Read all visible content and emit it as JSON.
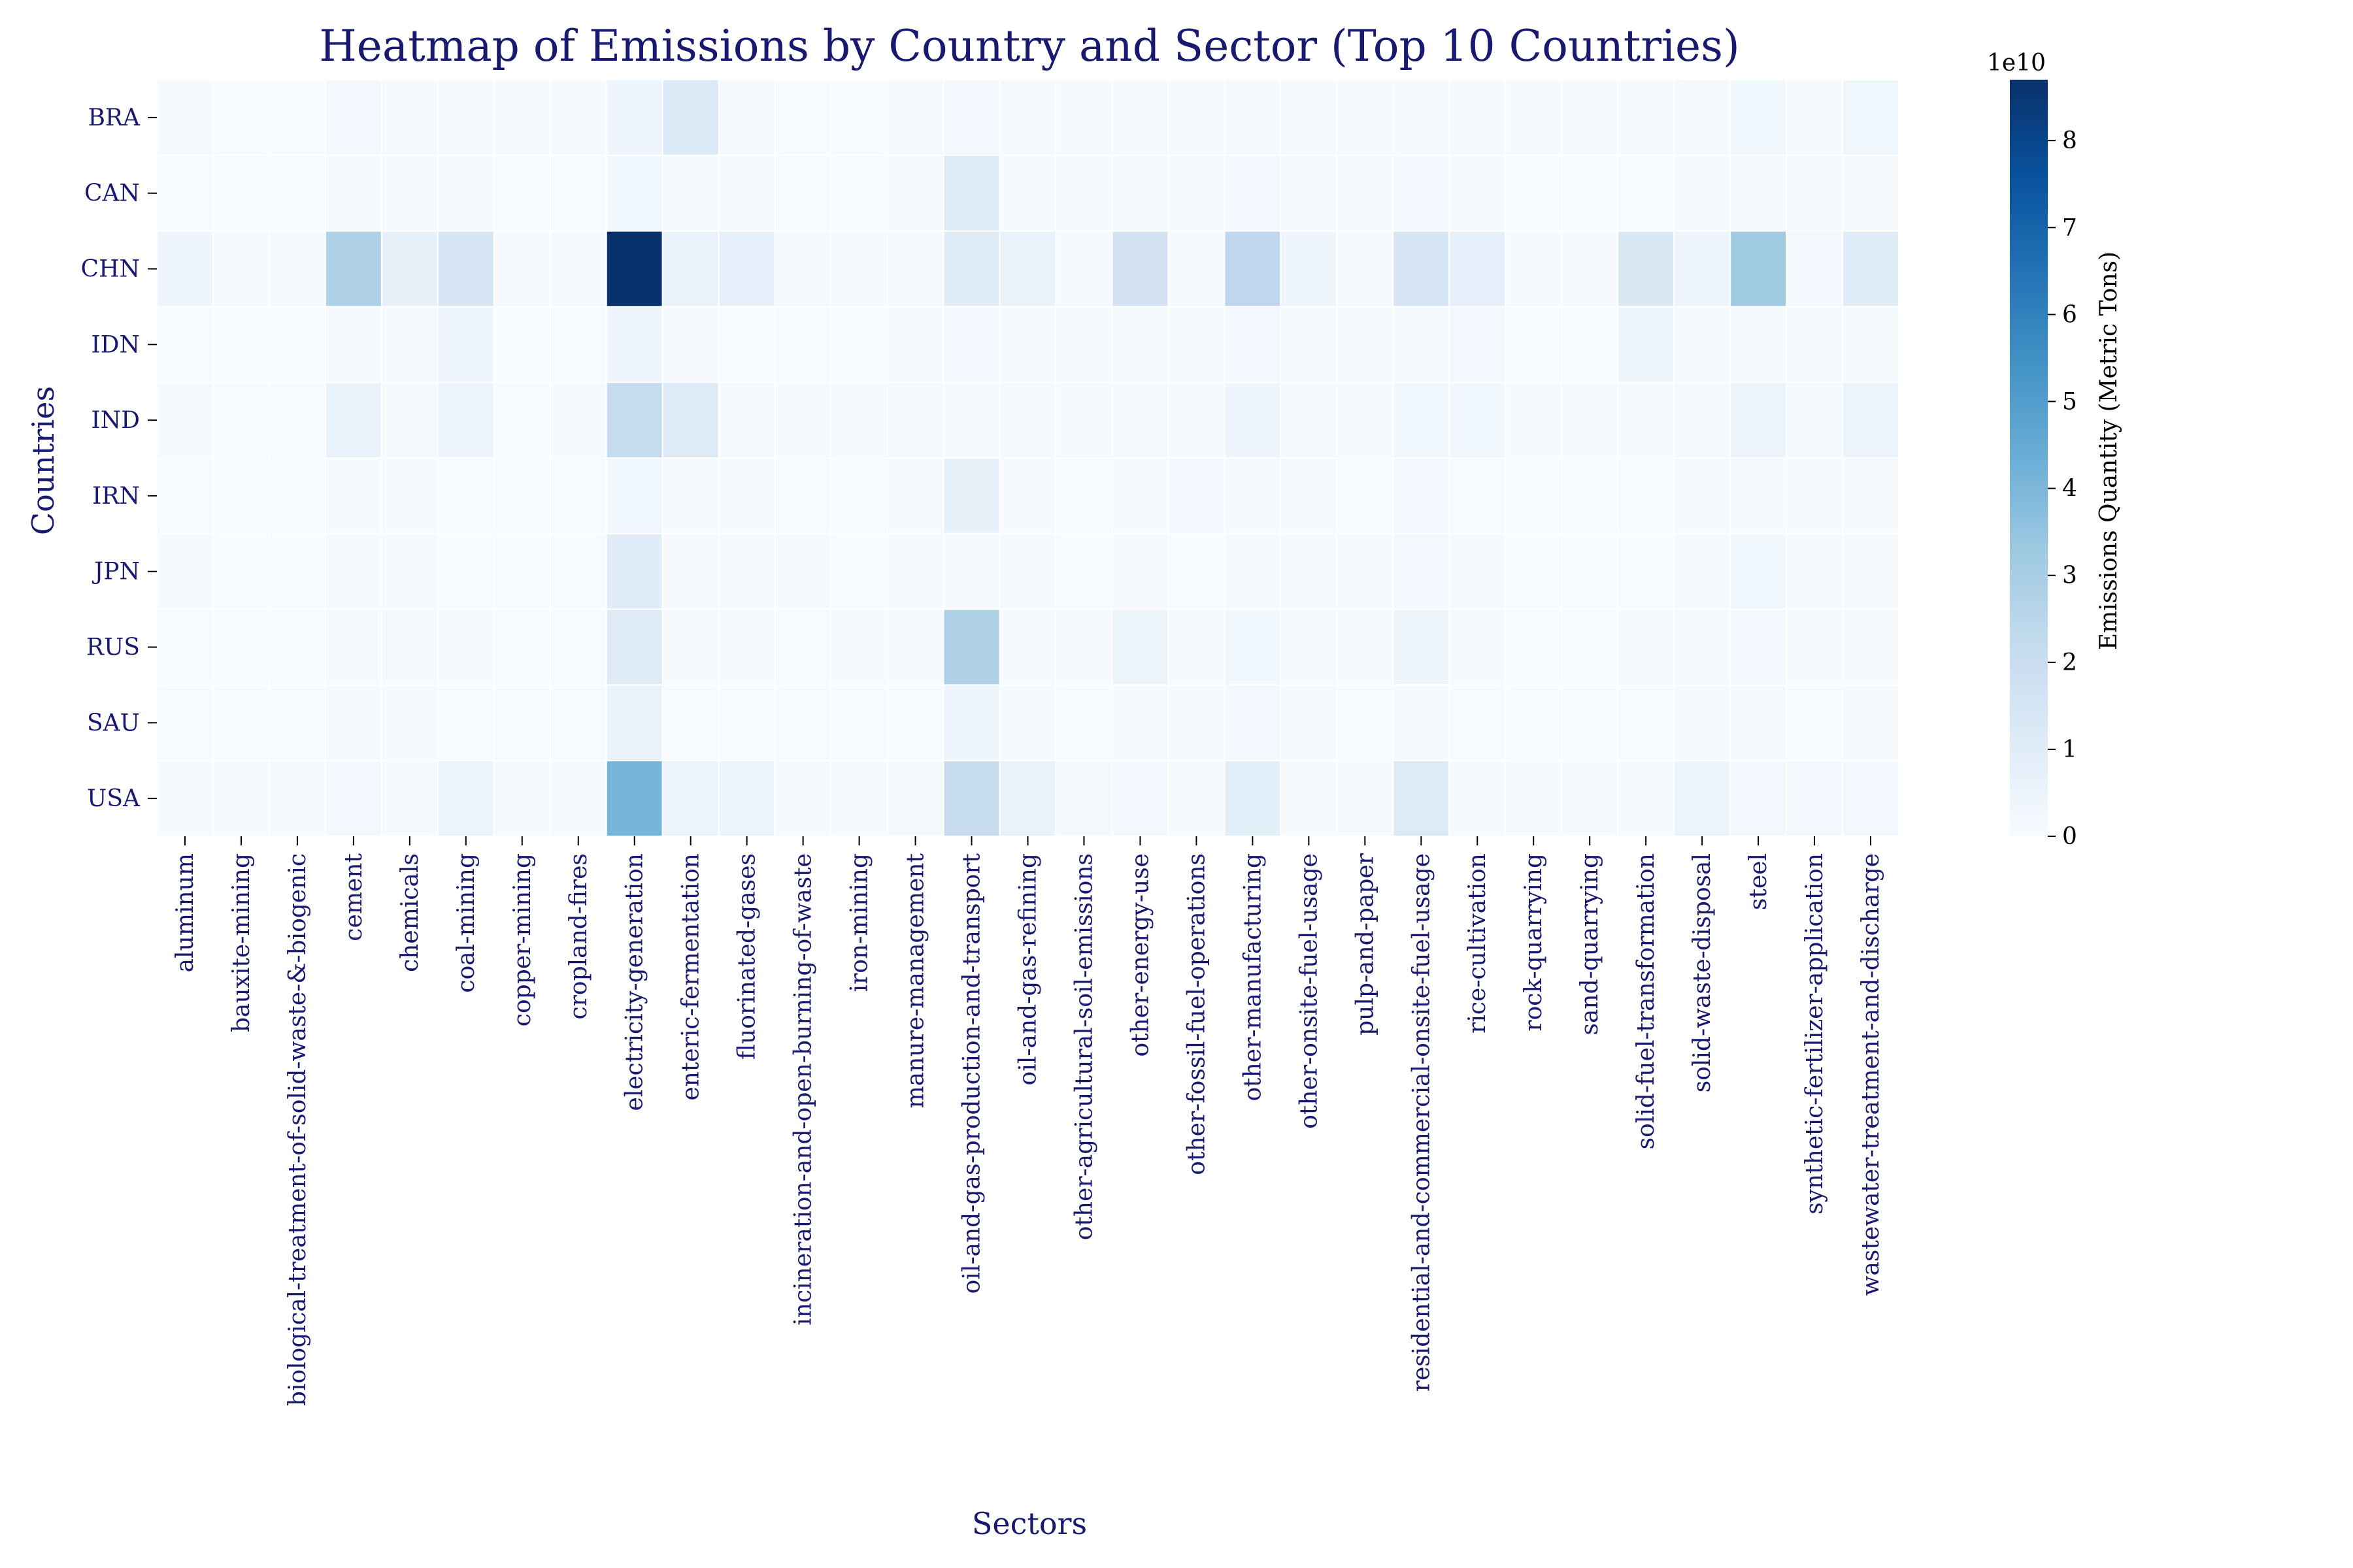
{
  "chart_data": {
    "type": "heatmap",
    "title": "Heatmap of Emissions by Country and Sector (Top 10 Countries)",
    "xlabel": "Sectors",
    "ylabel": "Countries",
    "colorbar_label": "Emissions Quantity (Metric Tons)",
    "colorbar_exponent": "1e10",
    "colorbar_ticks": [
      "0",
      "1",
      "2",
      "3",
      "4",
      "5",
      "6",
      "7",
      "8"
    ],
    "value_range_1e10": [
      0,
      8.7
    ],
    "colormap": "Blues",
    "rows": [
      "BRA",
      "CAN",
      "CHN",
      "IDN",
      "IND",
      "IRN",
      "JPN",
      "RUS",
      "SAU",
      "USA"
    ],
    "columns": [
      "aluminum",
      "bauxite-mining",
      "biological-treatment-of-solid-waste-&-biogenic",
      "cement",
      "chemicals",
      "coal-mining",
      "copper-mining",
      "cropland-fires",
      "electricity-generation",
      "enteric-fermentation",
      "fluorinated-gases",
      "incineration-and-open-burning-of-waste",
      "iron-mining",
      "manure-management",
      "oil-and-gas-production-and-transport",
      "oil-and-gas-refining",
      "other-agricultural-soil-emissions",
      "other-energy-use",
      "other-fossil-fuel-operations",
      "other-manufacturing",
      "other-onsite-fuel-usage",
      "pulp-and-paper",
      "residential-and-commercial-onsite-fuel-usage",
      "rice-cultivation",
      "rock-quarrying",
      "sand-quarrying",
      "solid-fuel-transformation",
      "solid-waste-disposal",
      "steel",
      "synthetic-fertilizer-application",
      "wastewater-treatment-and-discharge"
    ],
    "values_1e10": [
      [
        0.05,
        0.02,
        0.02,
        0.2,
        0.1,
        0.1,
        0.05,
        0.05,
        0.4,
        1.2,
        0.1,
        0.02,
        0.02,
        0.1,
        0.2,
        0.1,
        0.1,
        0.05,
        0.05,
        0.1,
        0.05,
        0.05,
        0.05,
        0.1,
        0.05,
        0.05,
        0.05,
        0.15,
        0.3,
        0.05,
        0.35
      ],
      [
        0.02,
        0.02,
        0.02,
        0.05,
        0.05,
        0.05,
        0.02,
        0.02,
        0.3,
        0.1,
        0.05,
        0.02,
        0.02,
        0.05,
        1.1,
        0.05,
        0.05,
        0.1,
        0.05,
        0.2,
        0.05,
        0.05,
        0.2,
        0.05,
        0.02,
        0.02,
        0.02,
        0.05,
        0.1,
        0.05,
        0.05
      ],
      [
        0.4,
        0.1,
        0.05,
        2.8,
        0.7,
        1.5,
        0.05,
        0.05,
        8.7,
        0.6,
        0.8,
        0.05,
        0.05,
        0.1,
        1.0,
        0.6,
        0.1,
        1.6,
        0.1,
        2.4,
        0.4,
        0.1,
        1.5,
        0.8,
        0.05,
        0.05,
        1.3,
        0.4,
        3.2,
        0.2,
        1.0
      ],
      [
        0.02,
        0.02,
        0.02,
        0.05,
        0.05,
        0.4,
        0.02,
        0.02,
        0.4,
        0.05,
        0.02,
        0.02,
        0.02,
        0.05,
        0.2,
        0.05,
        0.05,
        0.1,
        0.05,
        0.2,
        0.05,
        0.05,
        0.1,
        0.2,
        0.02,
        0.02,
        0.4,
        0.1,
        0.1,
        0.05,
        0.1
      ],
      [
        0.05,
        0.02,
        0.02,
        0.6,
        0.05,
        0.5,
        0.02,
        0.05,
        2.2,
        1.1,
        0.1,
        0.05,
        0.05,
        0.1,
        0.05,
        0.1,
        0.1,
        0.05,
        0.05,
        0.4,
        0.05,
        0.05,
        0.3,
        0.3,
        0.05,
        0.05,
        0.05,
        0.05,
        0.5,
        0.1,
        0.5
      ],
      [
        0.02,
        0.02,
        0.02,
        0.1,
        0.05,
        0.02,
        0.02,
        0.02,
        0.3,
        0.05,
        0.05,
        0.02,
        0.02,
        0.05,
        0.7,
        0.05,
        0.02,
        0.05,
        0.2,
        0.1,
        0.05,
        0.02,
        0.2,
        0.02,
        0.02,
        0.02,
        0.02,
        0.05,
        0.05,
        0.05,
        0.05
      ],
      [
        0.05,
        0.02,
        0.02,
        0.1,
        0.05,
        0.02,
        0.02,
        0.02,
        1.0,
        0.05,
        0.05,
        0.05,
        0.02,
        0.05,
        0.05,
        0.05,
        0.02,
        0.05,
        0.02,
        0.1,
        0.05,
        0.05,
        0.2,
        0.05,
        0.02,
        0.02,
        0.02,
        0.05,
        0.3,
        0.05,
        0.05
      ],
      [
        0.02,
        0.02,
        0.02,
        0.1,
        0.1,
        0.1,
        0.02,
        0.02,
        1.1,
        0.05,
        0.05,
        0.02,
        0.05,
        0.05,
        2.8,
        0.1,
        0.05,
        0.5,
        0.05,
        0.3,
        0.05,
        0.05,
        0.4,
        0.05,
        0.02,
        0.02,
        0.15,
        0.15,
        0.2,
        0.05,
        0.05
      ],
      [
        0.02,
        0.02,
        0.02,
        0.05,
        0.05,
        0.02,
        0.02,
        0.02,
        0.6,
        0.02,
        0.02,
        0.02,
        0.02,
        0.02,
        0.4,
        0.05,
        0.02,
        0.05,
        0.05,
        0.2,
        0.05,
        0.02,
        0.05,
        0.02,
        0.02,
        0.02,
        0.02,
        0.05,
        0.05,
        0.02,
        0.05
      ],
      [
        0.05,
        0.05,
        0.05,
        0.2,
        0.1,
        0.5,
        0.05,
        0.05,
        4.1,
        0.5,
        0.5,
        0.05,
        0.05,
        0.15,
        2.1,
        0.6,
        0.15,
        0.2,
        0.05,
        0.9,
        0.05,
        0.1,
        1.1,
        0.05,
        0.1,
        0.1,
        0.05,
        0.5,
        0.2,
        0.2,
        0.2
      ]
    ]
  }
}
